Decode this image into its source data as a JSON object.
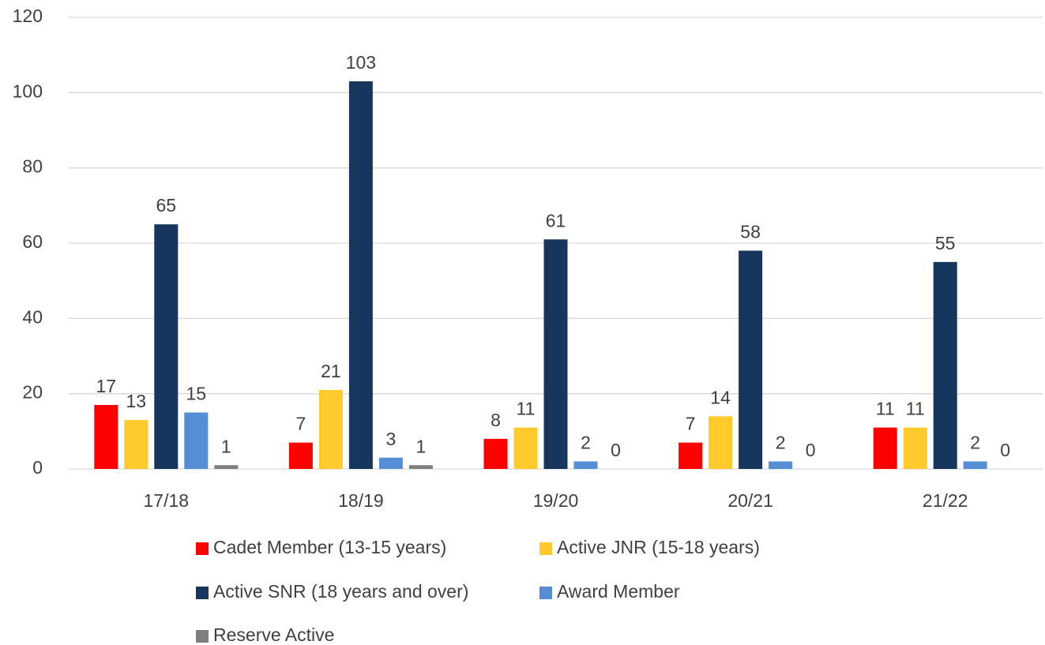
{
  "chart_data": {
    "type": "bar",
    "categories": [
      "17/18",
      "18/19",
      "19/20",
      "20/21",
      "21/22"
    ],
    "series": [
      {
        "name": "Cadet Member (13-15 years)",
        "color": "#ff0000",
        "values": [
          17,
          7,
          8,
          7,
          11
        ]
      },
      {
        "name": "Active JNR (15-18 years)",
        "color": "#ffca2c",
        "values": [
          13,
          21,
          11,
          14,
          11
        ]
      },
      {
        "name": "Active SNR (18 years and over)",
        "color": "#17365d",
        "values": [
          65,
          103,
          61,
          58,
          55
        ]
      },
      {
        "name": "Award Member",
        "color": "#558ed5",
        "values": [
          15,
          3,
          2,
          2,
          2
        ]
      },
      {
        "name": "Reserve Active",
        "color": "#7f7f7f",
        "values": [
          1,
          1,
          0,
          0,
          0
        ]
      }
    ],
    "ylim": [
      0,
      120
    ],
    "yticks": [
      0,
      20,
      40,
      60,
      80,
      100,
      120
    ],
    "grid": true,
    "legend": "bottom"
  }
}
